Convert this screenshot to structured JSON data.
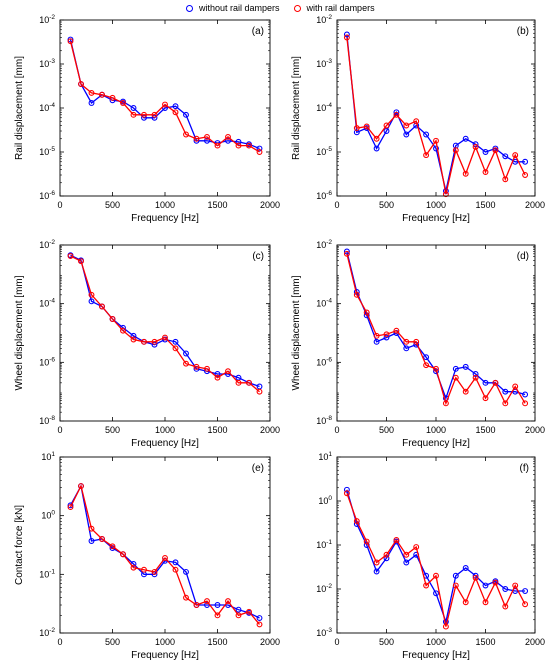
{
  "legend": {
    "items": [
      {
        "label": "without rail dampers",
        "color": "#0000ff"
      },
      {
        "label": "with rail dampers",
        "color": "#ff0000"
      }
    ]
  },
  "chart_data": [
    {
      "type": "line",
      "panel_label": "(a)",
      "xlabel": "Frequency [Hz]",
      "ylabel": "Rail displacement [mm]",
      "yscale": "log",
      "xlim": [
        0,
        2000
      ],
      "ylim": [
        1e-06,
        0.01
      ],
      "xticks": [
        "0",
        "500",
        "1000",
        "1500",
        "2000"
      ],
      "yticks": [
        {
          "base": "10",
          "exp": "-6"
        },
        {
          "base": "10",
          "exp": "-5"
        },
        {
          "base": "10",
          "exp": "-4"
        },
        {
          "base": "10",
          "exp": "-3"
        },
        {
          "base": "10",
          "exp": "-2"
        }
      ],
      "x": [
        100,
        200,
        300,
        400,
        500,
        600,
        700,
        800,
        900,
        1000,
        1100,
        1200,
        1300,
        1400,
        1500,
        1600,
        1700,
        1800,
        1900
      ],
      "series": [
        {
          "name": "without rail dampers",
          "color": "#0000ff",
          "values": [
            0.0036,
            0.00035,
            0.00013,
            0.0002,
            0.00015,
            0.00014,
            0.0001,
            6e-05,
            6e-05,
            0.0001,
            0.00011,
            7e-05,
            1.8e-05,
            1.8e-05,
            1.6e-05,
            1.8e-05,
            1.7e-05,
            1.5e-05,
            1.2e-05
          ]
        },
        {
          "name": "with rail dampers",
          "color": "#ff0000",
          "values": [
            0.0033,
            0.00035,
            0.00022,
            0.0002,
            0.00017,
            0.00013,
            7e-05,
            7e-05,
            7e-05,
            0.00012,
            8e-05,
            2.5e-05,
            2e-05,
            2.2e-05,
            1.4e-05,
            2.2e-05,
            1.4e-05,
            1.4e-05,
            1e-05
          ]
        }
      ]
    },
    {
      "type": "line",
      "panel_label": "(b)",
      "xlabel": "Frequency [Hz]",
      "ylabel": "Rail displacement [mm]",
      "yscale": "log",
      "xlim": [
        0,
        2000
      ],
      "ylim": [
        1e-06,
        0.01
      ],
      "xticks": [
        "0",
        "500",
        "1000",
        "1500",
        "2000"
      ],
      "yticks": [
        {
          "base": "10",
          "exp": "-6"
        },
        {
          "base": "10",
          "exp": "-5"
        },
        {
          "base": "10",
          "exp": "-4"
        },
        {
          "base": "10",
          "exp": "-3"
        },
        {
          "base": "10",
          "exp": "-2"
        }
      ],
      "x": [
        100,
        200,
        300,
        400,
        500,
        600,
        700,
        800,
        900,
        1000,
        1100,
        1200,
        1300,
        1400,
        1500,
        1600,
        1700,
        1800,
        1900
      ],
      "series": [
        {
          "name": "without rail dampers",
          "color": "#0000ff",
          "values": [
            0.0047,
            2.8e-05,
            3.5e-05,
            1.2e-05,
            3e-05,
            8e-05,
            2.5e-05,
            4e-05,
            2.5e-05,
            1.2e-05,
            1.3e-06,
            1.4e-05,
            2e-05,
            1.5e-05,
            1e-05,
            1.2e-05,
            8e-06,
            6e-06,
            6e-06
          ]
        },
        {
          "name": "with rail dampers",
          "color": "#ff0000",
          "values": [
            0.004,
            3.5e-05,
            3.8e-05,
            2e-05,
            4e-05,
            7e-05,
            4e-05,
            5e-05,
            8.5e-06,
            1.8e-05,
            1.1e-06,
            1.1e-05,
            3.2e-06,
            1.3e-05,
            3.5e-06,
            1.1e-05,
            2.4e-06,
            8.5e-06,
            3e-06
          ]
        }
      ]
    },
    {
      "type": "line",
      "panel_label": "(c)",
      "xlabel": "Frequency [Hz]",
      "ylabel": "Wheel displacement [mm]",
      "yscale": "log",
      "xlim": [
        0,
        2000
      ],
      "ylim": [
        1e-08,
        0.01
      ],
      "xticks": [
        "0",
        "500",
        "1000",
        "1500",
        "2000"
      ],
      "yticks": [
        {
          "base": "10",
          "exp": "-8"
        },
        {
          "base": "10",
          "exp": "-6"
        },
        {
          "base": "10",
          "exp": "-4"
        },
        {
          "base": "10",
          "exp": "-2"
        }
      ],
      "x": [
        100,
        200,
        300,
        400,
        500,
        600,
        700,
        800,
        900,
        1000,
        1100,
        1200,
        1300,
        1400,
        1500,
        1600,
        1700,
        1800,
        1900
      ],
      "series": [
        {
          "name": "without rail dampers",
          "color": "#0000ff",
          "values": [
            0.0045,
            0.003,
            0.00012,
            8e-05,
            3e-05,
            1.5e-05,
            8e-06,
            5e-06,
            4e-06,
            6e-06,
            5e-06,
            2e-06,
            6e-07,
            5e-07,
            4e-07,
            4e-07,
            3e-07,
            2e-07,
            1.5e-07
          ]
        },
        {
          "name": "with rail dampers",
          "color": "#ff0000",
          "values": [
            0.0042,
            0.0028,
            0.0002,
            8e-05,
            3e-05,
            1.2e-05,
            6e-06,
            5e-06,
            5e-06,
            7e-06,
            3e-06,
            9e-07,
            7e-07,
            6e-07,
            3e-07,
            5e-07,
            2e-07,
            2e-07,
            1e-07
          ]
        }
      ]
    },
    {
      "type": "line",
      "panel_label": "(d)",
      "xlabel": "Frequency [Hz]",
      "ylabel": "Wheel displacement [mm]",
      "yscale": "log",
      "xlim": [
        0,
        2000
      ],
      "ylim": [
        1e-08,
        0.01
      ],
      "xticks": [
        "0",
        "500",
        "1000",
        "1500",
        "2000"
      ],
      "yticks": [
        {
          "base": "10",
          "exp": "-8"
        },
        {
          "base": "10",
          "exp": "-6"
        },
        {
          "base": "10",
          "exp": "-4"
        },
        {
          "base": "10",
          "exp": "-2"
        }
      ],
      "x": [
        100,
        200,
        300,
        400,
        500,
        600,
        700,
        800,
        900,
        1000,
        1100,
        1200,
        1300,
        1400,
        1500,
        1600,
        1700,
        1800,
        1900
      ],
      "series": [
        {
          "name": "without rail dampers",
          "color": "#0000ff",
          "values": [
            0.006,
            0.00025,
            4e-05,
            5e-06,
            7e-06,
            1e-05,
            3e-06,
            4e-06,
            1.5e-06,
            5e-07,
            6e-08,
            6e-07,
            7e-07,
            4e-07,
            2e-07,
            2e-07,
            1e-07,
            1e-07,
            8e-08
          ]
        },
        {
          "name": "with rail dampers",
          "color": "#ff0000",
          "values": [
            0.005,
            0.0002,
            5e-05,
            8e-06,
            9e-06,
            1.2e-05,
            5e-06,
            5e-06,
            8e-07,
            6e-07,
            4e-08,
            3e-07,
            1e-07,
            3e-07,
            6e-08,
            2e-07,
            4e-08,
            1.5e-07,
            4e-08
          ]
        }
      ]
    },
    {
      "type": "line",
      "panel_label": "(e)",
      "xlabel": "Frequency [Hz]",
      "ylabel": "Contact force [kN]",
      "yscale": "log",
      "xlim": [
        0,
        2000
      ],
      "ylim": [
        0.01,
        10
      ],
      "xticks": [
        "0",
        "500",
        "1000",
        "1500",
        "2000"
      ],
      "yticks": [
        {
          "base": "10",
          "exp": "-2"
        },
        {
          "base": "10",
          "exp": "-1"
        },
        {
          "base": "10",
          "exp": "0"
        },
        {
          "base": "10",
          "exp": "1"
        }
      ],
      "x": [
        100,
        200,
        300,
        400,
        500,
        600,
        700,
        800,
        900,
        1000,
        1100,
        1200,
        1300,
        1400,
        1500,
        1600,
        1700,
        1800,
        1900
      ],
      "series": [
        {
          "name": "without rail dampers",
          "color": "#0000ff",
          "values": [
            1.5,
            3.2,
            0.37,
            0.4,
            0.28,
            0.22,
            0.15,
            0.1,
            0.1,
            0.17,
            0.16,
            0.11,
            0.03,
            0.03,
            0.03,
            0.03,
            0.025,
            0.022,
            0.018
          ]
        },
        {
          "name": "with rail dampers",
          "color": "#ff0000",
          "values": [
            1.4,
            3.2,
            0.6,
            0.4,
            0.3,
            0.22,
            0.13,
            0.12,
            0.11,
            0.19,
            0.12,
            0.04,
            0.03,
            0.035,
            0.02,
            0.035,
            0.02,
            0.023,
            0.014
          ]
        }
      ]
    },
    {
      "type": "line",
      "panel_label": "(f)",
      "xlabel": "Frequency [Hz]",
      "ylabel": "",
      "yscale": "log",
      "xlim": [
        0,
        2000
      ],
      "ylim": [
        0.001,
        10
      ],
      "xticks": [
        "0",
        "500",
        "1000",
        "1500",
        "2000"
      ],
      "yticks": [
        {
          "base": "10",
          "exp": "-3"
        },
        {
          "base": "10",
          "exp": "-2"
        },
        {
          "base": "10",
          "exp": "-1"
        },
        {
          "base": "10",
          "exp": "0"
        },
        {
          "base": "10",
          "exp": "1"
        }
      ],
      "x": [
        100,
        200,
        300,
        400,
        500,
        600,
        700,
        800,
        900,
        1000,
        1100,
        1200,
        1300,
        1400,
        1500,
        1600,
        1700,
        1800,
        1900
      ],
      "series": [
        {
          "name": "without rail dampers",
          "color": "#0000ff",
          "values": [
            1.8,
            0.3,
            0.1,
            0.025,
            0.05,
            0.12,
            0.04,
            0.06,
            0.02,
            0.008,
            0.0018,
            0.02,
            0.03,
            0.02,
            0.012,
            0.015,
            0.01,
            0.009,
            0.009
          ]
        },
        {
          "name": "with rail dampers",
          "color": "#ff0000",
          "values": [
            1.5,
            0.35,
            0.12,
            0.04,
            0.06,
            0.13,
            0.06,
            0.09,
            0.012,
            0.02,
            0.0014,
            0.012,
            0.005,
            0.018,
            0.005,
            0.014,
            0.004,
            0.012,
            0.0045
          ]
        }
      ]
    }
  ]
}
